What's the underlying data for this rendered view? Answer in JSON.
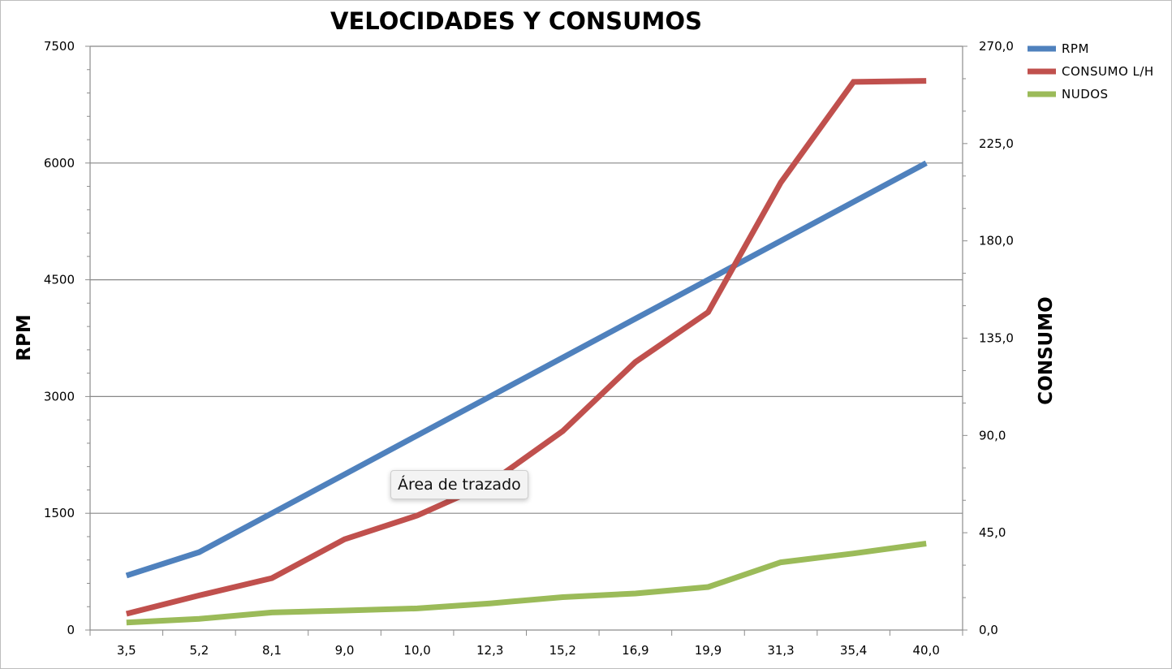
{
  "chart_data": {
    "type": "line",
    "title": "VELOCIDADES Y CONSUMOS",
    "ylabel": "RPM",
    "y2label": "CONSUMO",
    "categories": [
      "3,5",
      "5,2",
      "8,1",
      "9,0",
      "10,0",
      "12,3",
      "15,2",
      "16,9",
      "19,9",
      "31,3",
      "35,4",
      "40,0"
    ],
    "ylim": [
      0,
      7500
    ],
    "yticks": [
      "0",
      "1500",
      "3000",
      "4500",
      "6000",
      "7500"
    ],
    "y2lim": [
      0,
      270
    ],
    "y2ticks": [
      "0,0",
      "45,0",
      "90,0",
      "135,0",
      "180,0",
      "225,0",
      "270,0"
    ],
    "grid": true,
    "legend_position": "right",
    "series": [
      {
        "name": "RPM",
        "axis": "left",
        "color": "#4f81bd",
        "values": [
          700,
          1000,
          1500,
          2000,
          2500,
          3000,
          3500,
          4000,
          4500,
          5000,
          5500,
          6000
        ]
      },
      {
        "name": "CONSUMO L/H",
        "axis": "right",
        "color": "#c0504d",
        "values": [
          7.5,
          16,
          24,
          42,
          53,
          68,
          92,
          124,
          147,
          207,
          253.5,
          254
        ]
      },
      {
        "name": "NUDOS",
        "axis": "right",
        "color": "#9bbb59",
        "values": [
          3.5,
          5.2,
          8.1,
          9.0,
          10.0,
          12.3,
          15.2,
          16.9,
          19.9,
          31.3,
          35.4,
          40.0
        ]
      }
    ]
  },
  "tooltip": {
    "text": "Área de trazado"
  }
}
